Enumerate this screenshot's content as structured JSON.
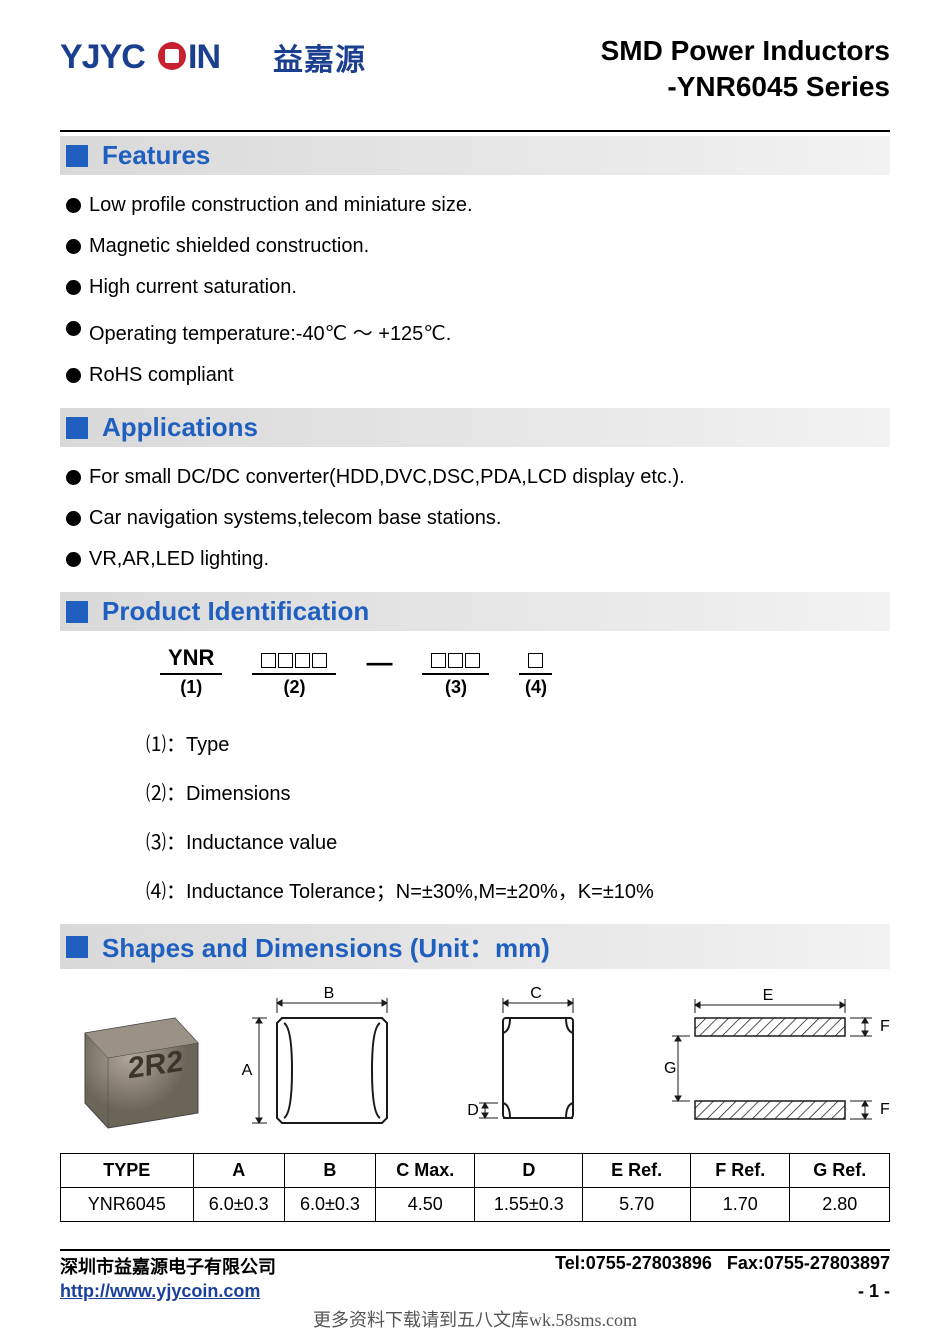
{
  "header": {
    "logo_text": "YJYCOIN",
    "logo_cn": "益嘉源",
    "title_line1": "SMD Power Inductors",
    "title_line2": "-YNR6045 Series",
    "logo_color": "#1b3f8f"
  },
  "sections": {
    "features": {
      "title": "Features",
      "items": [
        "Low profile construction and miniature size.",
        "Magnetic shielded construction.",
        "High current saturation.",
        "Operating temperature:-40℃ ～ +125℃.",
        "RoHS compliant"
      ]
    },
    "applications": {
      "title": "Applications",
      "items": [
        "For small DC/DC converter(HDD,DVC,DSC,PDA,LCD display etc.).",
        "Car navigation systems,telecom base stations.",
        "VR,AR,LED lighting."
      ]
    },
    "product_identification": {
      "title": "Product Identification",
      "code_parts": [
        {
          "top": "YNR",
          "bottom": "(1)",
          "boxes": 0
        },
        {
          "top": "",
          "bottom": "(2)",
          "boxes": 4
        },
        {
          "top": "",
          "bottom": "(3)",
          "boxes": 3
        },
        {
          "top": "",
          "bottom": "(4)",
          "boxes": 1
        }
      ],
      "legend": [
        "⑴：Type",
        "⑵：Dimensions",
        "⑶：Inductance value",
        "⑷：Inductance Tolerance；N=±30%,M=±20%，K=±10%"
      ]
    },
    "shapes": {
      "title": "Shapes and Dimensions (Unit：mm)"
    }
  },
  "drawings": {
    "photo_label": "2R2",
    "photo_bg": "#8a8378",
    "line_color": "#1a1a1a",
    "dims": [
      "A",
      "B",
      "C",
      "D",
      "E",
      "F",
      "G"
    ]
  },
  "dim_table": {
    "columns": [
      "TYPE",
      "A",
      "B",
      "C Max.",
      "D",
      "E Ref.",
      "F Ref.",
      "G Ref."
    ],
    "rows": [
      [
        "YNR6045",
        "6.0±0.3",
        "6.0±0.3",
        "4.50",
        "1.55±0.3",
        "5.70",
        "1.70",
        "2.80"
      ]
    ],
    "col_widths_pct": [
      16,
      11,
      11,
      12,
      13,
      13,
      12,
      12
    ]
  },
  "footer": {
    "company": "深圳市益嘉源电子有限公司",
    "contact": "Tel:0755-27803896   Fax:0755-27803897",
    "url": "http://www.yjycoin.com",
    "page": "- 1 -"
  },
  "bottom_note": "更多资料下载请到五八文库wk.58sms.com"
}
